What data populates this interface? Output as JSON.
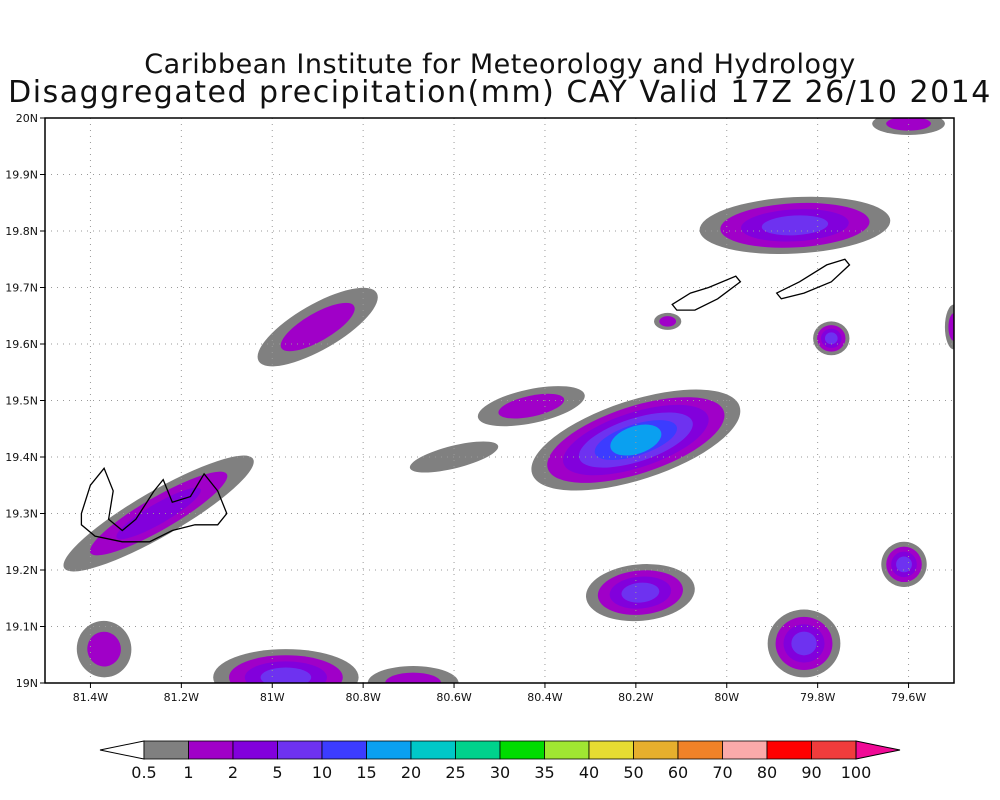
{
  "title": {
    "line1": "Caribbean Institute for Meteorology and Hydrology",
    "line2": "Disaggregated precipitation(mm) CAY Valid 17Z 26/10 2014"
  },
  "map": {
    "lon_range": [
      -81.5,
      -79.5
    ],
    "lat_range": [
      19.0,
      20.0
    ],
    "grid": true,
    "lon_ticks": [
      {
        "v": -81.4,
        "label": "81.4W"
      },
      {
        "v": -81.2,
        "label": "81.2W"
      },
      {
        "v": -81.0,
        "label": "81W"
      },
      {
        "v": -80.8,
        "label": "80.8W"
      },
      {
        "v": -80.6,
        "label": "80.6W"
      },
      {
        "v": -80.4,
        "label": "80.4W"
      },
      {
        "v": -80.2,
        "label": "80.2W"
      },
      {
        "v": -80.0,
        "label": "80W"
      },
      {
        "v": -79.8,
        "label": "79.8W"
      },
      {
        "v": -79.6,
        "label": "79.6W"
      }
    ],
    "lat_ticks": [
      {
        "v": 19.0,
        "label": "19N"
      },
      {
        "v": 19.1,
        "label": "19.1N"
      },
      {
        "v": 19.2,
        "label": "19.2N"
      },
      {
        "v": 19.3,
        "label": "19.3N"
      },
      {
        "v": 19.4,
        "label": "19.4N"
      },
      {
        "v": 19.5,
        "label": "19.5N"
      },
      {
        "v": 19.6,
        "label": "19.6N"
      },
      {
        "v": 19.7,
        "label": "19.7N"
      },
      {
        "v": 19.8,
        "label": "19.8N"
      },
      {
        "v": 19.9,
        "label": "19.9N"
      },
      {
        "v": 20.0,
        "label": "20N"
      }
    ]
  },
  "colorbar": {
    "labels": [
      "0.5",
      "1",
      "2",
      "5",
      "10",
      "15",
      "20",
      "25",
      "30",
      "35",
      "40",
      "50",
      "60",
      "70",
      "80",
      "90",
      "100"
    ],
    "colors": [
      "#ffffff",
      "#808080",
      "#a000c8",
      "#8200dc",
      "#6e32f0",
      "#3c3cff",
      "#0aa0f0",
      "#00c8c8",
      "#00d28c",
      "#00dc00",
      "#a0e632",
      "#e6dc32",
      "#e6af2d",
      "#f08228",
      "#faaaaa",
      "#ff0000",
      "#f03c3c",
      "#f00a96"
    ]
  },
  "precip_areas": [
    {
      "name": "cell-north-edge",
      "lon": -79.6,
      "lat": 19.99,
      "rx": 0.08,
      "ry": 0.02,
      "rot": 0,
      "level": 2
    },
    {
      "name": "cell-ne-large",
      "lon": -79.85,
      "lat": 19.81,
      "rx": 0.21,
      "ry": 0.05,
      "rot": -3,
      "level": 4
    },
    {
      "name": "cell-ne-small",
      "lon": -79.77,
      "lat": 19.61,
      "rx": 0.04,
      "ry": 0.03,
      "rot": 0,
      "level": 4
    },
    {
      "name": "cell-east-edge",
      "lon": -79.5,
      "lat": 19.63,
      "rx": 0.02,
      "ry": 0.04,
      "rot": 0,
      "level": 2
    },
    {
      "name": "cell-near-cayman-brac",
      "lon": -80.13,
      "lat": 19.64,
      "rx": 0.03,
      "ry": 0.015,
      "rot": 0,
      "level": 2
    },
    {
      "name": "cell-nw-band",
      "lon": -80.9,
      "lat": 19.63,
      "rx": 0.15,
      "ry": 0.04,
      "rot": -30,
      "level": 2
    },
    {
      "name": "cell-center-main",
      "lon": -80.2,
      "lat": 19.43,
      "rx": 0.24,
      "ry": 0.07,
      "rot": -18,
      "level": 6
    },
    {
      "name": "cell-center-north",
      "lon": -80.43,
      "lat": 19.49,
      "rx": 0.12,
      "ry": 0.03,
      "rot": -12,
      "level": 2
    },
    {
      "name": "cell-center-west",
      "lon": -80.6,
      "lat": 19.4,
      "rx": 0.1,
      "ry": 0.02,
      "rot": -14,
      "level": 1
    },
    {
      "name": "cell-grand-cayman",
      "lon": -81.25,
      "lat": 19.3,
      "rx": 0.24,
      "ry": 0.04,
      "rot": -30,
      "level": 3
    },
    {
      "name": "cell-south-center",
      "lon": -80.19,
      "lat": 19.16,
      "rx": 0.12,
      "ry": 0.05,
      "rot": -5,
      "level": 4
    },
    {
      "name": "cell-se",
      "lon": -79.83,
      "lat": 19.07,
      "rx": 0.08,
      "ry": 0.06,
      "rot": 0,
      "level": 4
    },
    {
      "name": "cell-east-small",
      "lon": -79.61,
      "lat": 19.21,
      "rx": 0.05,
      "ry": 0.04,
      "rot": 0,
      "level": 4
    },
    {
      "name": "cell-sw",
      "lon": -81.37,
      "lat": 19.06,
      "rx": 0.06,
      "ry": 0.05,
      "rot": -10,
      "level": 2
    },
    {
      "name": "cell-south-west",
      "lon": -80.97,
      "lat": 19.01,
      "rx": 0.16,
      "ry": 0.05,
      "rot": 0,
      "level": 4
    },
    {
      "name": "cell-south-mid",
      "lon": -80.69,
      "lat": 19.0,
      "rx": 0.1,
      "ry": 0.03,
      "rot": 0,
      "level": 2
    }
  ],
  "islands": [
    {
      "name": "grand-cayman",
      "points": [
        [
          -81.42,
          19.3
        ],
        [
          -81.4,
          19.35
        ],
        [
          -81.37,
          19.38
        ],
        [
          -81.35,
          19.34
        ],
        [
          -81.36,
          19.29
        ],
        [
          -81.33,
          19.27
        ],
        [
          -81.3,
          19.29
        ],
        [
          -81.26,
          19.34
        ],
        [
          -81.24,
          19.36
        ],
        [
          -81.22,
          19.32
        ],
        [
          -81.18,
          19.33
        ],
        [
          -81.15,
          19.37
        ],
        [
          -81.12,
          19.34
        ],
        [
          -81.1,
          19.3
        ],
        [
          -81.12,
          19.28
        ],
        [
          -81.17,
          19.28
        ],
        [
          -81.22,
          19.27
        ],
        [
          -81.27,
          19.25
        ],
        [
          -81.33,
          19.25
        ],
        [
          -81.39,
          19.26
        ],
        [
          -81.42,
          19.28
        ]
      ]
    },
    {
      "name": "cayman-brac",
      "points": [
        [
          -80.12,
          19.67
        ],
        [
          -80.08,
          19.69
        ],
        [
          -80.04,
          19.7
        ],
        [
          -79.98,
          19.72
        ],
        [
          -79.97,
          19.71
        ],
        [
          -80.02,
          19.68
        ],
        [
          -80.07,
          19.66
        ],
        [
          -80.11,
          19.66
        ]
      ]
    },
    {
      "name": "little-cayman",
      "points": [
        [
          -79.89,
          19.69
        ],
        [
          -79.84,
          19.71
        ],
        [
          -79.78,
          19.74
        ],
        [
          -79.74,
          19.75
        ],
        [
          -79.73,
          19.74
        ],
        [
          -79.77,
          19.71
        ],
        [
          -79.83,
          19.69
        ],
        [
          -79.88,
          19.68
        ]
      ]
    }
  ]
}
